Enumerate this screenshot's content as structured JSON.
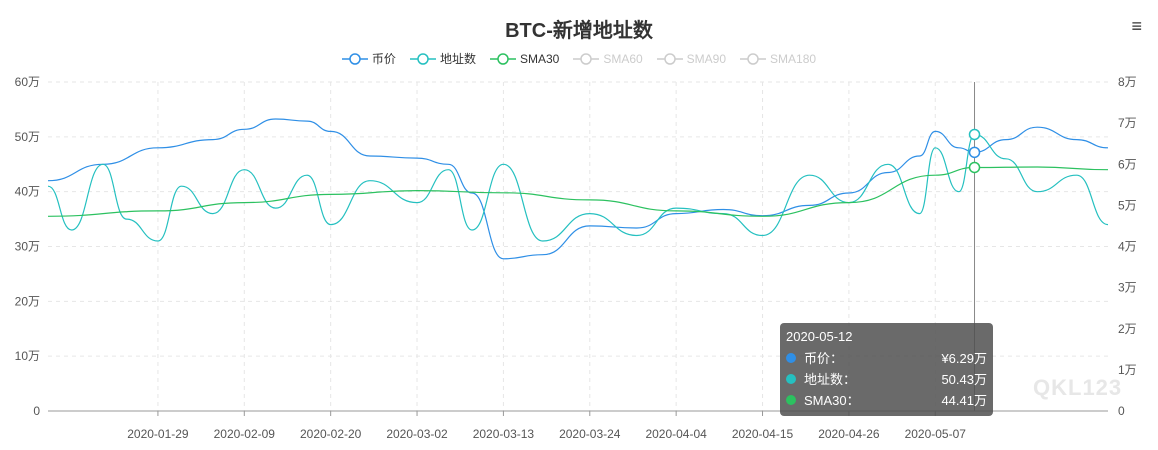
{
  "title": "BTC-新增地址数",
  "menu_icon": "≡",
  "watermark": "QKL123",
  "tooltip": {
    "date": "2020-05-12",
    "rows": [
      {
        "name": "币价：",
        "value": "¥6.29万",
        "color": "#2f8fe6"
      },
      {
        "name": "地址数：",
        "value": "50.43万",
        "color": "#25c0c0"
      },
      {
        "name": "SMA30：",
        "value": "44.41万",
        "color": "#2cc160"
      }
    ]
  },
  "chart_data": {
    "type": "line",
    "title": "BTC-新增地址数",
    "legend_position": "top-center",
    "grid": true,
    "legend": [
      {
        "name": "币价",
        "color": "#2f8fe6",
        "active": true
      },
      {
        "name": "地址数",
        "color": "#25c0c0",
        "active": true
      },
      {
        "name": "SMA30",
        "color": "#2cc160",
        "active": true
      },
      {
        "name": "SMA60",
        "color": "#cccccc",
        "active": false
      },
      {
        "name": "SMA90",
        "color": "#cccccc",
        "active": false
      },
      {
        "name": "SMA180",
        "color": "#cccccc",
        "active": false
      }
    ],
    "x_range": [
      "2020-01-15",
      "2020-05-29"
    ],
    "x_ticks": [
      "2020-01-29",
      "2020-02-09",
      "2020-02-20",
      "2020-03-02",
      "2020-03-13",
      "2020-03-24",
      "2020-04-04",
      "2020-04-15",
      "2020-04-26",
      "2020-05-07"
    ],
    "y_left": {
      "ticks": [
        "0",
        "10万",
        "20万",
        "30万",
        "40万",
        "50万",
        "60万"
      ],
      "range": [
        0,
        600000
      ]
    },
    "y_right": {
      "ticks": [
        "0",
        "1万",
        "2万",
        "3万",
        "4万",
        "5万",
        "6万",
        "7万",
        "8万"
      ],
      "range": [
        0,
        80000
      ]
    },
    "highlight_date": "2020-05-12",
    "series": [
      {
        "name": "币价",
        "axis": "right",
        "color": "#2f8fe6",
        "x": [
          "2020-01-15",
          "2020-01-22",
          "2020-01-29",
          "2020-02-05",
          "2020-02-09",
          "2020-02-13",
          "2020-02-17",
          "2020-02-20",
          "2020-02-25",
          "2020-03-02",
          "2020-03-06",
          "2020-03-09",
          "2020-03-13",
          "2020-03-18",
          "2020-03-24",
          "2020-03-30",
          "2020-04-04",
          "2020-04-10",
          "2020-04-15",
          "2020-04-21",
          "2020-04-26",
          "2020-05-01",
          "2020-05-05",
          "2020-05-07",
          "2020-05-10",
          "2020-05-12",
          "2020-05-16",
          "2020-05-20",
          "2020-05-25",
          "2020-05-29"
        ],
        "y": [
          56000,
          60000,
          64000,
          66000,
          68500,
          71000,
          70500,
          68000,
          62000,
          61500,
          60000,
          53000,
          37000,
          38000,
          45000,
          44500,
          48000,
          49000,
          47500,
          50000,
          53000,
          58000,
          62000,
          68000,
          64000,
          62900,
          66000,
          69000,
          66000,
          64000
        ]
      },
      {
        "name": "地址数",
        "axis": "left",
        "color": "#25c0c0",
        "x": [
          "2020-01-15",
          "2020-01-18",
          "2020-01-22",
          "2020-01-25",
          "2020-01-29",
          "2020-02-01",
          "2020-02-05",
          "2020-02-09",
          "2020-02-13",
          "2020-02-17",
          "2020-02-20",
          "2020-02-25",
          "2020-03-02",
          "2020-03-06",
          "2020-03-09",
          "2020-03-13",
          "2020-03-18",
          "2020-03-24",
          "2020-03-30",
          "2020-04-04",
          "2020-04-10",
          "2020-04-15",
          "2020-04-21",
          "2020-04-26",
          "2020-05-01",
          "2020-05-05",
          "2020-05-07",
          "2020-05-10",
          "2020-05-12",
          "2020-05-16",
          "2020-05-20",
          "2020-05-25",
          "2020-05-29"
        ],
        "y": [
          410000,
          330000,
          450000,
          350000,
          310000,
          410000,
          360000,
          440000,
          370000,
          430000,
          340000,
          420000,
          380000,
          440000,
          330000,
          450000,
          310000,
          360000,
          320000,
          370000,
          360000,
          320000,
          430000,
          380000,
          450000,
          360000,
          480000,
          400000,
          504300,
          460000,
          400000,
          430000,
          340000
        ]
      },
      {
        "name": "SMA30",
        "axis": "left",
        "color": "#2cc160",
        "x": [
          "2020-01-15",
          "2020-01-29",
          "2020-02-09",
          "2020-02-20",
          "2020-03-02",
          "2020-03-13",
          "2020-03-24",
          "2020-04-04",
          "2020-04-15",
          "2020-04-26",
          "2020-05-07",
          "2020-05-12",
          "2020-05-20",
          "2020-05-29"
        ],
        "y": [
          355000,
          365000,
          380000,
          395000,
          402000,
          398000,
          385000,
          365000,
          355000,
          380000,
          430000,
          444100,
          445000,
          440000
        ]
      }
    ]
  }
}
